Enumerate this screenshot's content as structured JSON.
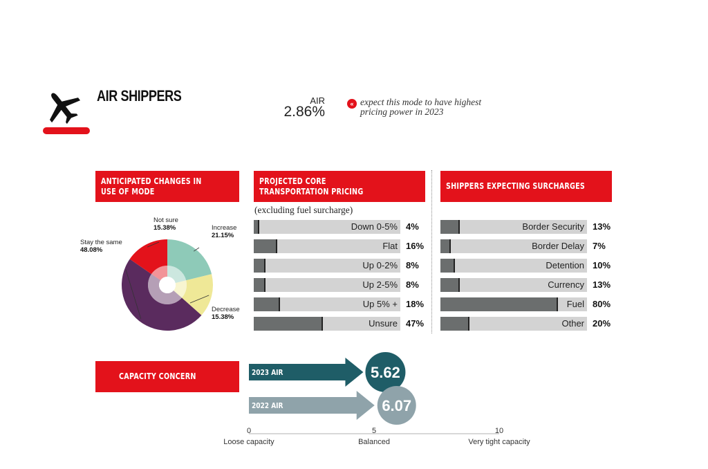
{
  "header": {
    "title": "AIR SHIPPERS",
    "air_label": "AIR",
    "air_value": "2.86%",
    "note": "expect this mode to have highest pricing power in 2023",
    "note_icon": "chevron-left-double-icon"
  },
  "colors": {
    "red": "#e3121b",
    "bar_fill": "#6b6e6e",
    "bar_track": "#d3d3d3",
    "teal_2023": "#1f5d67",
    "grey_2022": "#8fa3aa"
  },
  "chart_data": [
    {
      "type": "pie",
      "title": "ANTICIPATED CHANGES IN USE OF MODE",
      "labels": [
        "Increase",
        "Decrease",
        "Stay the same",
        "Not sure"
      ],
      "values": [
        21.15,
        15.38,
        48.08,
        15.38
      ],
      "value_labels": [
        "21.15%",
        "15.38%",
        "48.08%",
        "15.38%"
      ],
      "colors": [
        "#8ecab8",
        "#efe897",
        "#5a2b5e",
        "#e3121b"
      ]
    },
    {
      "type": "bar",
      "title": "PROJECTED CORE TRANSPORTATION PRICING",
      "subtitle": "(excluding fuel surcharge)",
      "categories": [
        "Down 0-5%",
        "Flat",
        "Up 0-2%",
        "Up 2-5%",
        "Up 5% +",
        "Unsure"
      ],
      "values": [
        4,
        16,
        8,
        8,
        18,
        47
      ],
      "value_labels": [
        "4%",
        "16%",
        "8%",
        "8%",
        "18%",
        "47%"
      ],
      "xlim": [
        0,
        100
      ]
    },
    {
      "type": "bar",
      "title": "SHIPPERS EXPECTING SURCHARGES",
      "categories": [
        "Border Security",
        "Border Delay",
        "Detention",
        "Currency",
        "Fuel",
        "Other"
      ],
      "values": [
        13,
        7,
        10,
        13,
        80,
        20
      ],
      "value_labels": [
        "13%",
        "7%",
        "10%",
        "13%",
        "80%",
        "20%"
      ],
      "xlim": [
        0,
        100
      ]
    },
    {
      "type": "bar",
      "title": "CAPACITY CONCERN",
      "categories": [
        "2023 AIR",
        "2022 AIR"
      ],
      "values": [
        5.62,
        6.07
      ],
      "value_labels": [
        "5.62",
        "6.07"
      ],
      "xlim": [
        0,
        10
      ],
      "ticks": [
        "0",
        "5",
        "10"
      ],
      "tick_labels": [
        "Loose capacity",
        "Balanced",
        "Very tight capacity"
      ]
    }
  ]
}
